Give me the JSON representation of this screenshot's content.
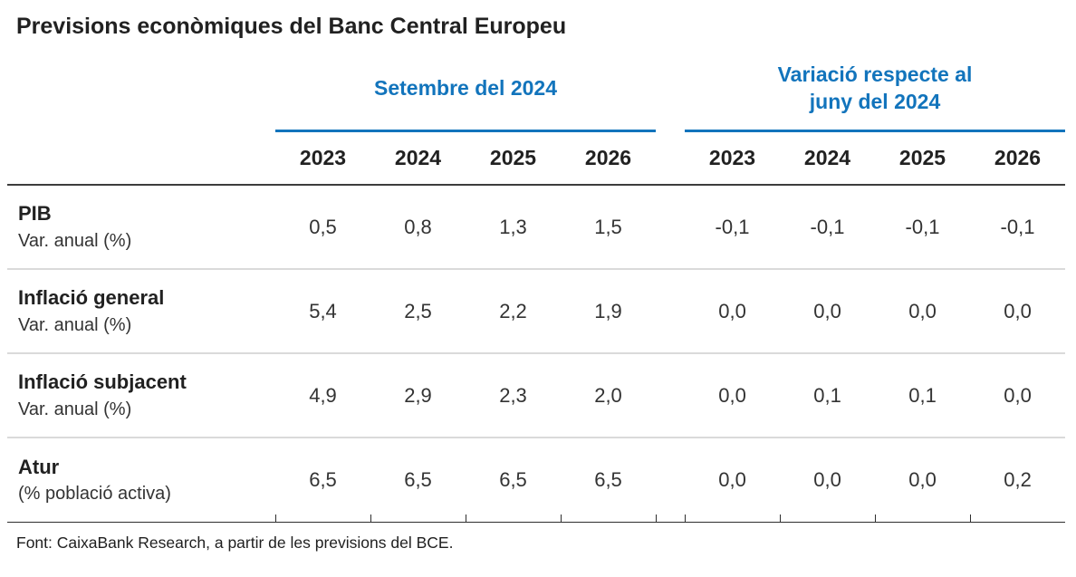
{
  "title": "Previsions econòmiques del Banc Central Europeu",
  "footer": "Font: CaixaBank Research, a partir de les previsions del BCE.",
  "colors": {
    "accent_blue": "#1274bc",
    "header_rule_dark": "#3d3d3d",
    "row_rule_gray": "#dadada",
    "text_dark": "#212121"
  },
  "chart_data": {
    "type": "table",
    "title": "Previsions econòmiques del Banc Central Europeu",
    "decimal_separator": ",",
    "column_groups": [
      {
        "label_lines": [
          "Setembre del 2024"
        ],
        "columns": [
          "2023",
          "2024",
          "2025",
          "2026"
        ]
      },
      {
        "label_lines": [
          "Variació respecte al",
          "juny del 2024"
        ],
        "columns": [
          "2023",
          "2024",
          "2025",
          "2026"
        ]
      }
    ],
    "rows": [
      {
        "label": "PIB",
        "sublabel": "Var. anual (%)",
        "setembre": [
          "0,5",
          "0,8",
          "1,3",
          "1,5"
        ],
        "variacio": [
          "-0,1",
          "-0,1",
          "-0,1",
          "-0,1"
        ],
        "setembre_num": [
          0.5,
          0.8,
          1.3,
          1.5
        ],
        "variacio_num": [
          -0.1,
          -0.1,
          -0.1,
          -0.1
        ]
      },
      {
        "label": "Inflació general",
        "sublabel": "Var. anual (%)",
        "setembre": [
          "5,4",
          "2,5",
          "2,2",
          "1,9"
        ],
        "variacio": [
          "0,0",
          "0,0",
          "0,0",
          "0,0"
        ],
        "setembre_num": [
          5.4,
          2.5,
          2.2,
          1.9
        ],
        "variacio_num": [
          0.0,
          0.0,
          0.0,
          0.0
        ]
      },
      {
        "label": "Inflació subjacent",
        "sublabel": "Var. anual (%)",
        "setembre": [
          "4,9",
          "2,9",
          "2,3",
          "2,0"
        ],
        "variacio": [
          "0,0",
          "0,1",
          "0,1",
          "0,0"
        ],
        "setembre_num": [
          4.9,
          2.9,
          2.3,
          2.0
        ],
        "variacio_num": [
          0.0,
          0.1,
          0.1,
          0.0
        ]
      },
      {
        "label": "Atur",
        "sublabel": "(% població activa)",
        "setembre": [
          "6,5",
          "6,5",
          "6,5",
          "6,5"
        ],
        "variacio": [
          "0,0",
          "0,0",
          "0,0",
          "0,2"
        ],
        "setembre_num": [
          6.5,
          6.5,
          6.5,
          6.5
        ],
        "variacio_num": [
          0.0,
          0.0,
          0.0,
          0.2
        ]
      }
    ],
    "source": "Font: CaixaBank Research, a partir de les previsions del BCE."
  }
}
